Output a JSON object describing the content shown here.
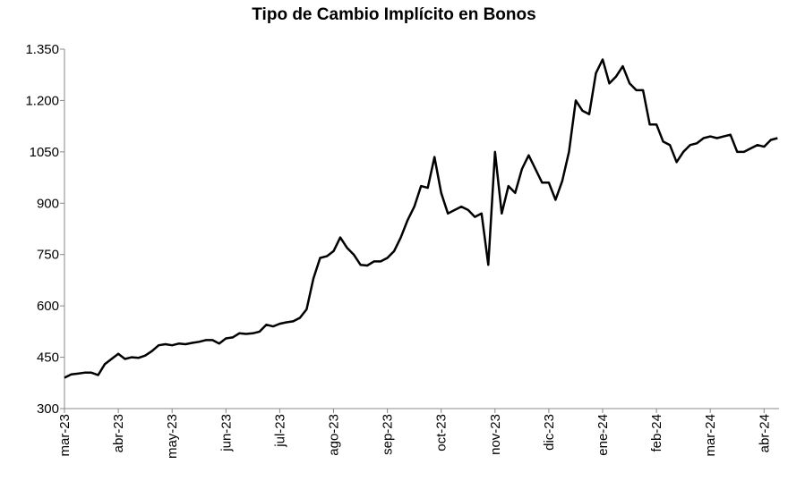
{
  "chart_data": {
    "type": "line",
    "title": "Tipo de Cambio Implícito en Bonos",
    "categories": [
      "mar-23",
      null,
      null,
      null,
      null,
      null,
      null,
      null,
      "abr-23",
      null,
      null,
      null,
      null,
      null,
      null,
      null,
      "may-23",
      null,
      null,
      null,
      null,
      null,
      null,
      null,
      "jun-23",
      null,
      null,
      null,
      null,
      null,
      null,
      null,
      "jul-23",
      null,
      null,
      null,
      null,
      null,
      null,
      null,
      "ago-23",
      null,
      null,
      null,
      null,
      null,
      null,
      null,
      "sep-23",
      null,
      null,
      null,
      null,
      null,
      null,
      null,
      "oct-23",
      null,
      null,
      null,
      null,
      null,
      null,
      null,
      "nov-23",
      null,
      null,
      null,
      null,
      null,
      null,
      null,
      "dic-23",
      null,
      null,
      null,
      null,
      null,
      null,
      null,
      "ene-24",
      null,
      null,
      null,
      null,
      null,
      null,
      null,
      "feb-24",
      null,
      null,
      null,
      null,
      null,
      null,
      null,
      "mar-24",
      null,
      null,
      null,
      null,
      null,
      null,
      null,
      "abr-24",
      null,
      null
    ],
    "series": [
      {
        "name": "Tipo de Cambio Implícito",
        "color": "#000000",
        "values": [
          390,
          400,
          402,
          405,
          405,
          398,
          430,
          445,
          460,
          445,
          450,
          448,
          455,
          468,
          485,
          488,
          485,
          490,
          488,
          492,
          495,
          500,
          500,
          490,
          505,
          508,
          520,
          518,
          520,
          525,
          545,
          540,
          548,
          552,
          555,
          565,
          590,
          680,
          740,
          745,
          760,
          800,
          770,
          750,
          720,
          718,
          730,
          730,
          740,
          760,
          800,
          850,
          890,
          950,
          945,
          1035,
          930,
          870,
          880,
          890,
          880,
          860,
          870,
          720,
          1050,
          870,
          950,
          930,
          1000,
          1040,
          1000,
          960,
          960,
          910,
          965,
          1050,
          1200,
          1170,
          1160,
          1280,
          1320,
          1250,
          1270,
          1300,
          1250,
          1230,
          1230,
          1130,
          1130,
          1080,
          1070,
          1020,
          1050,
          1070,
          1075,
          1090,
          1095,
          1090,
          1095,
          1100,
          1050,
          1050,
          1060,
          1070,
          1065,
          1085,
          1090
        ]
      }
    ],
    "ylim": [
      300,
      1350
    ],
    "yticks": [
      300,
      450,
      600,
      750,
      900,
      1050,
      {
        "value": 1200,
        "label": "1.200"
      },
      {
        "value": 1350,
        "label": "1.350"
      }
    ]
  }
}
